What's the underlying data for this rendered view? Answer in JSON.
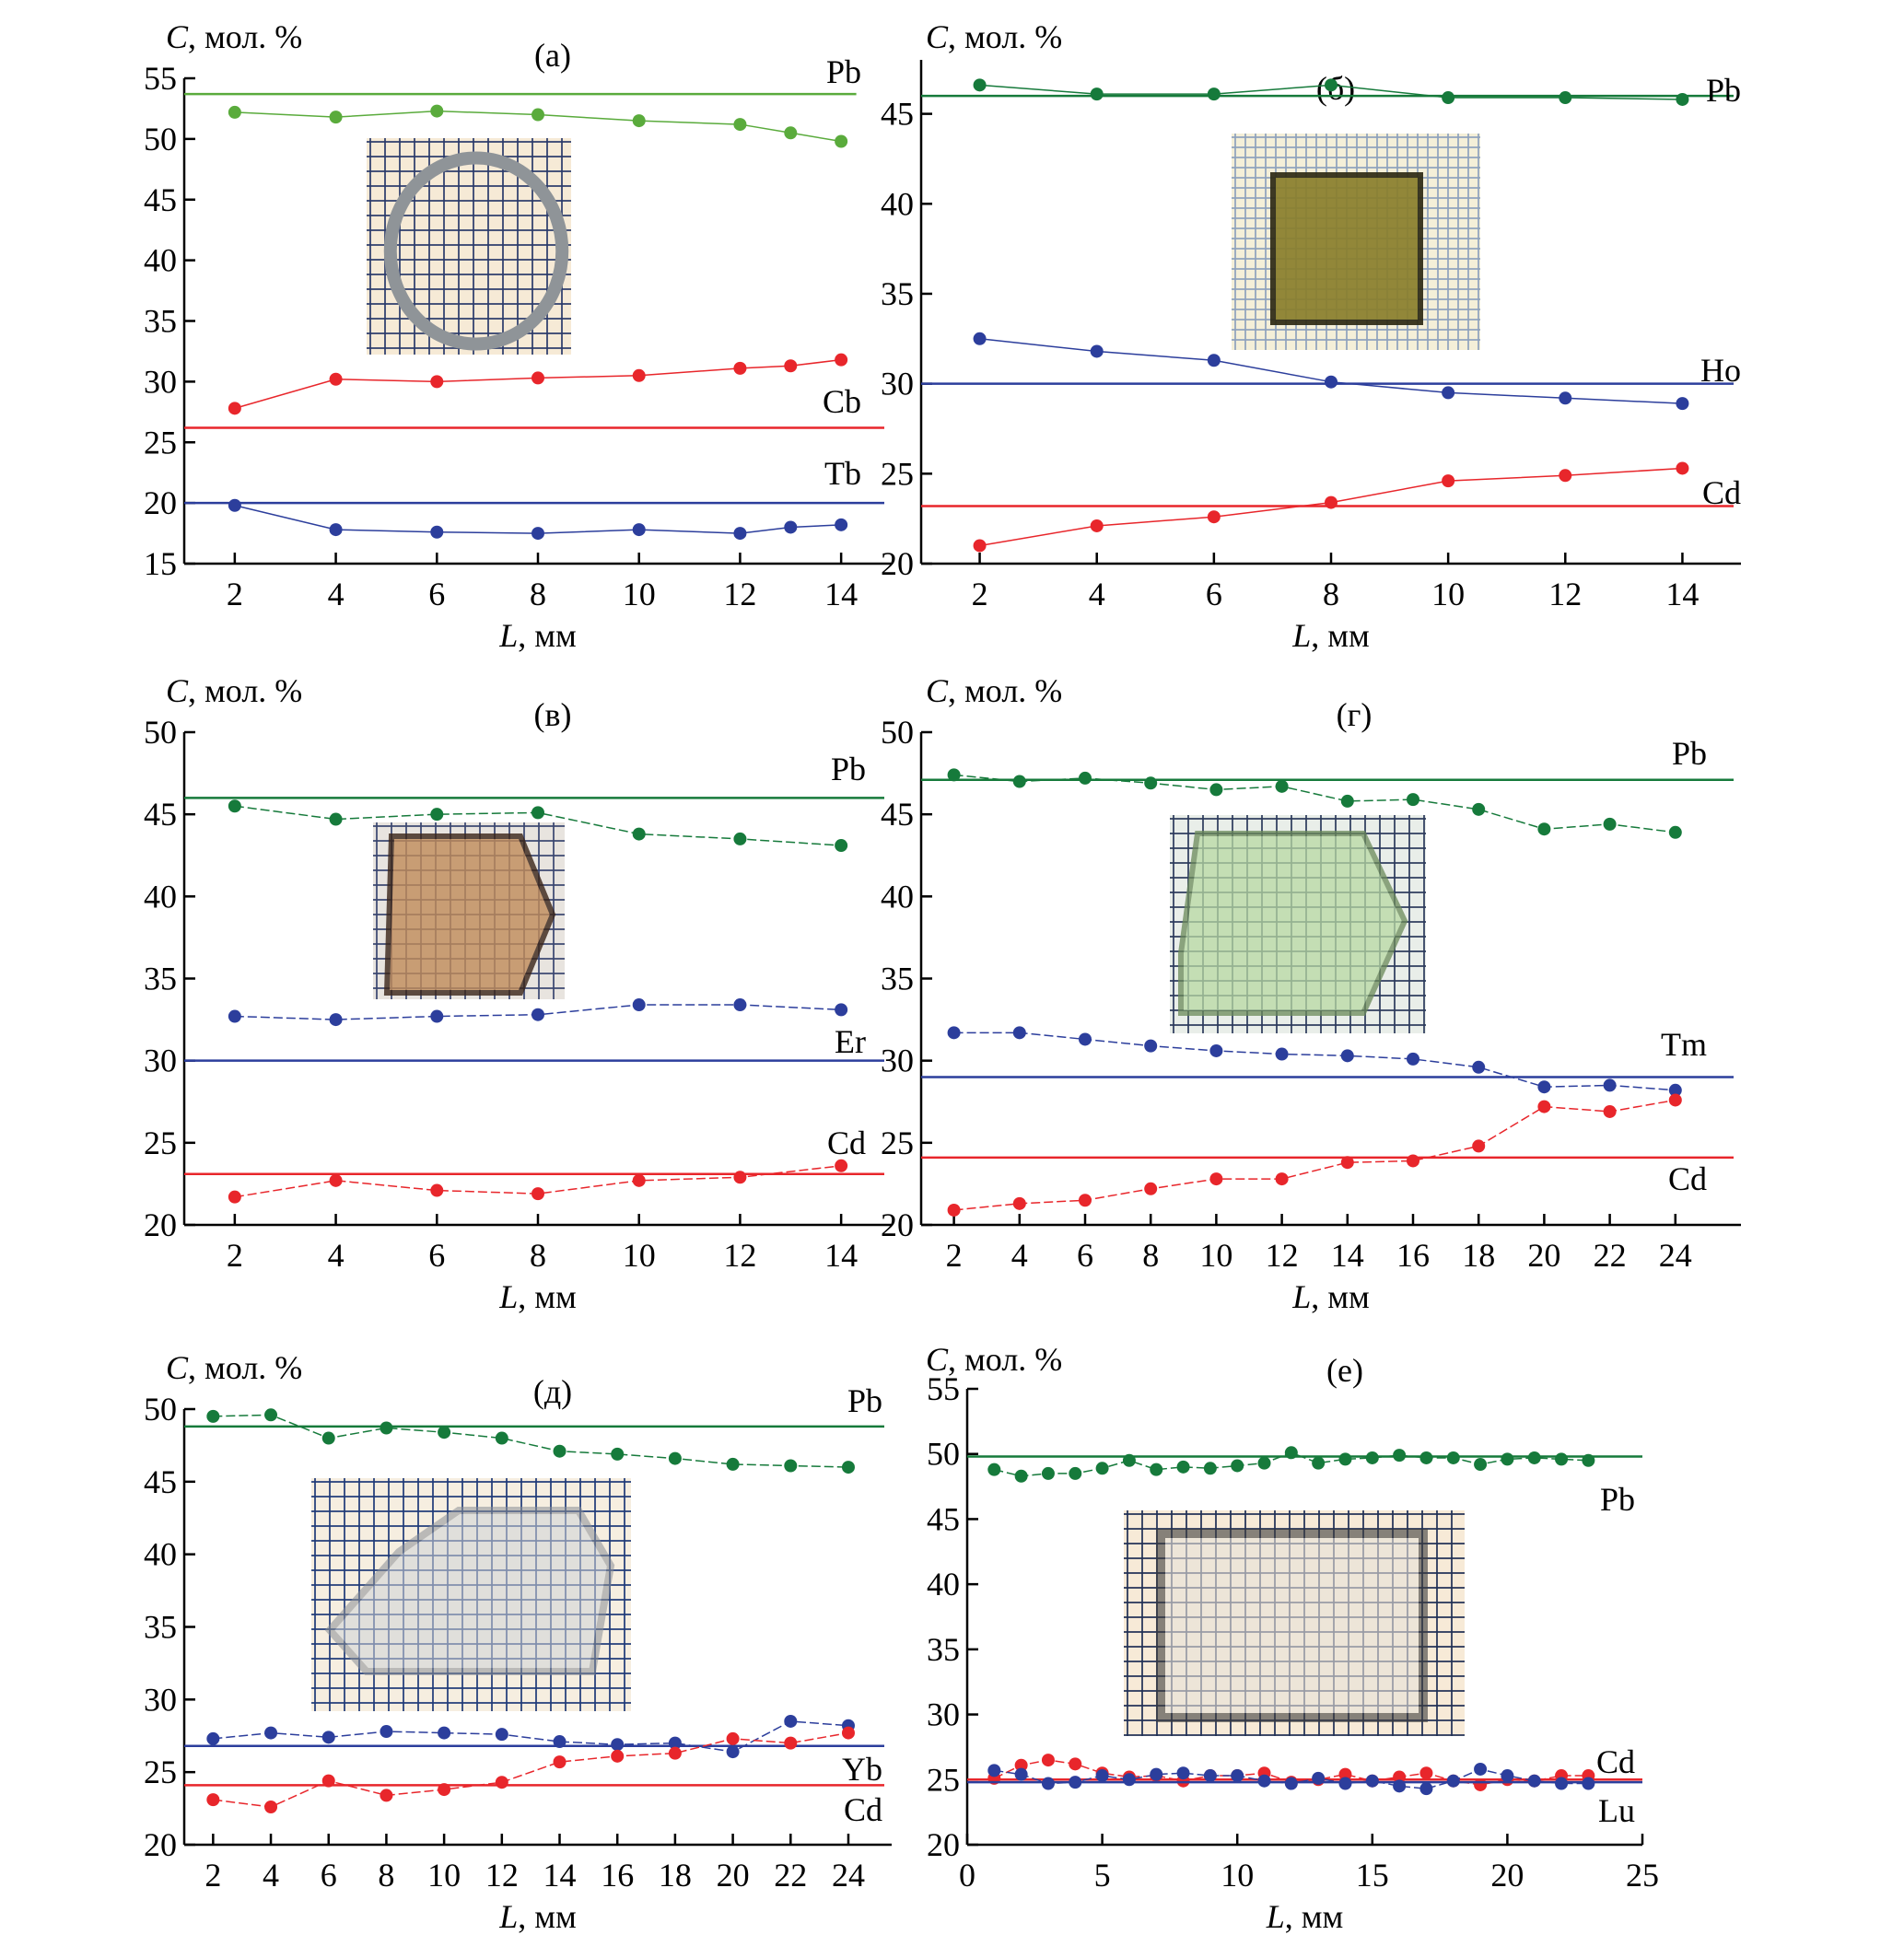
{
  "figure": {
    "y_axis_title": "C, мол. %",
    "x_axis_title": "L, мм"
  },
  "chart_data": [
    {
      "id": "a",
      "type": "line",
      "panel_label": "(а)",
      "ylabel": "C, мол. %",
      "xlabel": "L, мм",
      "ylim": [
        15,
        55
      ],
      "xlim": [
        1,
        15
      ],
      "yticks": [
        15,
        20,
        25,
        30,
        35,
        40,
        45,
        50,
        55
      ],
      "xticks": [
        2,
        4,
        6,
        8,
        10,
        12,
        14
      ],
      "inset_photo": "ring-shaped crystal on grid paper",
      "series": [
        {
          "name": "Pb",
          "color": "#5aab3c",
          "x": [
            2,
            4,
            6,
            8,
            10,
            12,
            13,
            14
          ],
          "values": [
            52.2,
            51.8,
            52.3,
            52.0,
            51.5,
            51.2,
            50.5,
            49.8
          ],
          "reference": 53.7
        },
        {
          "name": "Cb",
          "color": "#e8262b",
          "x": [
            2,
            4,
            6,
            8,
            10,
            12,
            13,
            14
          ],
          "values": [
            27.8,
            30.2,
            30.0,
            30.3,
            30.5,
            31.1,
            31.3,
            31.8
          ],
          "reference": 26.2
        },
        {
          "name": "Tb",
          "color": "#2c3e9c",
          "x": [
            2,
            4,
            6,
            8,
            10,
            12,
            13,
            14
          ],
          "values": [
            19.8,
            17.8,
            17.6,
            17.5,
            17.8,
            17.5,
            18.0,
            18.2
          ],
          "reference": 20.0
        }
      ]
    },
    {
      "id": "b",
      "type": "line",
      "panel_label": "(б)",
      "ylabel": "C, мол. %",
      "xlabel": "L, мм",
      "ylim": [
        20,
        48
      ],
      "xlim": [
        1,
        15
      ],
      "yticks": [
        20,
        25,
        30,
        35,
        40,
        45
      ],
      "xticks": [
        2,
        4,
        6,
        8,
        10,
        12,
        14
      ],
      "inset_photo": "yellow crystal on grid paper",
      "series": [
        {
          "name": "Pb",
          "color": "#167a3b",
          "x": [
            2,
            4,
            6,
            8,
            10,
            12,
            14
          ],
          "values": [
            46.6,
            46.1,
            46.1,
            46.6,
            45.9,
            45.9,
            45.8
          ],
          "reference": 46.0
        },
        {
          "name": "Ho",
          "color": "#2c3e9c",
          "x": [
            2,
            4,
            6,
            8,
            10,
            12,
            14
          ],
          "values": [
            32.5,
            31.8,
            31.3,
            30.1,
            29.5,
            29.2,
            28.9
          ],
          "reference": 30.0
        },
        {
          "name": "Cd",
          "color": "#e8262b",
          "x": [
            2,
            4,
            6,
            8,
            10,
            12,
            14
          ],
          "values": [
            21.0,
            22.1,
            22.6,
            23.4,
            24.6,
            24.9,
            25.3
          ],
          "reference": 23.2
        }
      ]
    },
    {
      "id": "v",
      "type": "line",
      "panel_label": "(в)",
      "ylabel": "C, мол. %",
      "xlabel": "L, мм",
      "ylim": [
        20,
        50
      ],
      "xlim": [
        1,
        15
      ],
      "yticks": [
        20,
        25,
        30,
        35,
        40,
        45,
        50
      ],
      "xticks": [
        2,
        4,
        6,
        8,
        10,
        12,
        14
      ],
      "inset_photo": "brown crystal on grid paper",
      "series": [
        {
          "name": "Pb",
          "color": "#167a3b",
          "x": [
            2,
            4,
            6,
            8,
            10,
            12,
            14
          ],
          "values": [
            45.5,
            44.7,
            45.0,
            45.1,
            43.8,
            43.5,
            43.1
          ],
          "reference": 46.0
        },
        {
          "name": "Er",
          "color": "#2c3e9c",
          "x": [
            2,
            4,
            6,
            8,
            10,
            12,
            14
          ],
          "values": [
            32.7,
            32.5,
            32.7,
            32.8,
            33.4,
            33.4,
            33.1
          ],
          "reference": 30.0
        },
        {
          "name": "Cd",
          "color": "#e8262b",
          "x": [
            2,
            4,
            6,
            8,
            10,
            12,
            14
          ],
          "values": [
            21.7,
            22.7,
            22.1,
            21.9,
            22.7,
            22.9,
            23.6
          ],
          "reference": 23.1
        }
      ]
    },
    {
      "id": "g",
      "type": "line",
      "panel_label": "(г)",
      "ylabel": "C, мол. %",
      "xlabel": "L, мм",
      "ylim": [
        20,
        50
      ],
      "xlim": [
        1,
        26
      ],
      "yticks": [
        20,
        25,
        30,
        35,
        40,
        45,
        50
      ],
      "xticks": [
        2,
        4,
        6,
        8,
        10,
        12,
        14,
        16,
        18,
        20,
        22,
        24
      ],
      "inset_photo": "green crystal on grid paper",
      "series": [
        {
          "name": "Pb",
          "color": "#167a3b",
          "x": [
            2,
            4,
            6,
            8,
            10,
            12,
            14,
            16,
            18,
            20,
            22,
            24
          ],
          "values": [
            47.4,
            47.0,
            47.2,
            46.9,
            46.5,
            46.7,
            45.8,
            45.9,
            45.3,
            44.1,
            44.4,
            43.9
          ],
          "reference": 47.1
        },
        {
          "name": "Tm",
          "color": "#2c3e9c",
          "x": [
            2,
            4,
            6,
            8,
            10,
            12,
            14,
            16,
            18,
            20,
            22,
            24
          ],
          "values": [
            31.7,
            31.7,
            31.3,
            30.9,
            30.6,
            30.4,
            30.3,
            30.1,
            29.6,
            28.4,
            28.5,
            28.2
          ],
          "reference": 29.0
        },
        {
          "name": "Cd",
          "color": "#e8262b",
          "x": [
            2,
            4,
            6,
            8,
            10,
            12,
            14,
            16,
            18,
            20,
            22,
            24
          ],
          "values": [
            20.9,
            21.3,
            21.5,
            22.2,
            22.8,
            22.8,
            23.8,
            23.9,
            24.8,
            27.2,
            26.9,
            27.6
          ],
          "reference": 24.1
        }
      ]
    },
    {
      "id": "d",
      "type": "line",
      "panel_label": "(д)",
      "ylabel": "C, мол. %",
      "xlabel": "L, мм",
      "ylim": [
        20,
        50
      ],
      "xlim": [
        1,
        25.5
      ],
      "yticks": [
        20,
        25,
        30,
        35,
        40,
        45,
        50
      ],
      "xticks": [
        2,
        4,
        6,
        8,
        10,
        12,
        14,
        16,
        18,
        20,
        22,
        24
      ],
      "inset_photo": "transparent crystal on grid paper",
      "series": [
        {
          "name": "Pb",
          "color": "#167a3b",
          "x": [
            2,
            4,
            6,
            8,
            10,
            12,
            14,
            16,
            18,
            20,
            22,
            24
          ],
          "values": [
            49.5,
            49.6,
            48.0,
            48.7,
            48.4,
            48.0,
            47.1,
            46.9,
            46.6,
            46.2,
            46.1,
            46.0
          ],
          "reference": 48.8
        },
        {
          "name": "Yb",
          "color": "#2c3e9c",
          "x": [
            2,
            4,
            6,
            8,
            10,
            12,
            14,
            16,
            18,
            20,
            22,
            24
          ],
          "values": [
            27.3,
            27.7,
            27.4,
            27.8,
            27.7,
            27.6,
            27.1,
            26.9,
            27.0,
            26.4,
            28.5,
            28.2
          ],
          "reference": 26.8
        },
        {
          "name": "Cd",
          "color": "#e8262b",
          "x": [
            2,
            4,
            6,
            8,
            10,
            12,
            14,
            16,
            18,
            20,
            22,
            24
          ],
          "values": [
            23.1,
            22.6,
            24.4,
            23.4,
            23.8,
            24.3,
            25.7,
            26.1,
            26.3,
            27.3,
            27.0,
            27.7
          ],
          "reference": 24.1
        }
      ]
    },
    {
      "id": "e",
      "type": "line",
      "panel_label": "(е)",
      "ylabel": "C, мол. %",
      "xlabel": "L, мм",
      "ylim": [
        20,
        55
      ],
      "xlim": [
        0,
        25
      ],
      "yticks": [
        20,
        25,
        30,
        35,
        40,
        45,
        50,
        55
      ],
      "xticks": [
        0,
        5,
        10,
        15,
        20,
        25
      ],
      "inset_photo": "white crystal with dark edge on grid paper",
      "series": [
        {
          "name": "Pb",
          "color": "#167a3b",
          "x": [
            1,
            2,
            3,
            4,
            5,
            6,
            7,
            8,
            9,
            10,
            11,
            12,
            13,
            14,
            15,
            16,
            17,
            18,
            19,
            20,
            21,
            22,
            23
          ],
          "values": [
            48.8,
            48.3,
            48.5,
            48.5,
            48.9,
            49.5,
            48.8,
            49.0,
            48.9,
            49.1,
            49.3,
            50.1,
            49.3,
            49.6,
            49.7,
            49.9,
            49.7,
            49.7,
            49.2,
            49.6,
            49.7,
            49.6,
            49.5
          ],
          "reference": 49.8
        },
        {
          "name": "Cd",
          "color": "#e8262b",
          "x": [
            1,
            2,
            3,
            4,
            5,
            6,
            7,
            8,
            9,
            10,
            11,
            12,
            13,
            14,
            15,
            16,
            17,
            18,
            19,
            20,
            21,
            22,
            23
          ],
          "values": [
            25.1,
            26.1,
            26.5,
            26.2,
            25.5,
            25.2,
            25.3,
            24.9,
            25.3,
            25.3,
            25.5,
            24.8,
            25.0,
            25.4,
            24.9,
            25.2,
            25.5,
            24.9,
            24.6,
            25.0,
            24.9,
            25.3,
            25.3
          ],
          "reference": 25.0
        },
        {
          "name": "Lu",
          "color": "#2c3e9c",
          "x": [
            1,
            2,
            3,
            4,
            5,
            6,
            7,
            8,
            9,
            10,
            11,
            12,
            13,
            14,
            15,
            16,
            17,
            18,
            19,
            20,
            21,
            22,
            23
          ],
          "values": [
            25.7,
            25.4,
            24.7,
            24.8,
            25.3,
            25.0,
            25.4,
            25.5,
            25.3,
            25.3,
            24.9,
            24.7,
            25.1,
            24.7,
            24.9,
            24.5,
            24.3,
            24.9,
            25.8,
            25.3,
            24.9,
            24.7,
            24.7
          ],
          "reference": 24.8
        }
      ]
    }
  ]
}
